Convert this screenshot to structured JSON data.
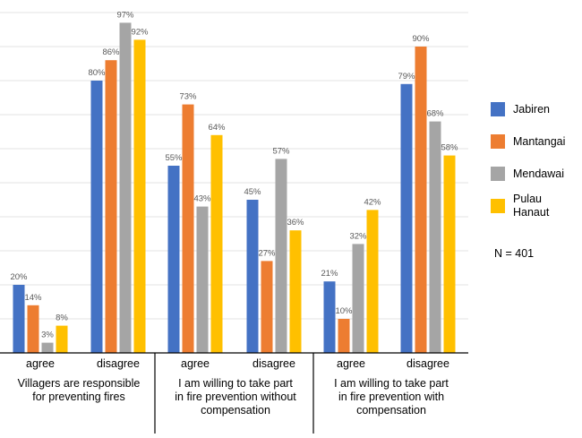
{
  "chart_data": {
    "type": "bar",
    "ylim": [
      0,
      100
    ],
    "grid": true,
    "legend_placement": "right",
    "groups": [
      {
        "label": "Villagers are responsible for preventing fires",
        "label_lines": [
          "Villagers are responsible",
          "for preventing fires"
        ]
      },
      {
        "label": "I am willing to take part in fire prevention without compensation",
        "label_lines": [
          "I am willing to take part",
          "in fire prevention without",
          "compensation"
        ]
      },
      {
        "label": "I am willing to take part in fire prevention with compensation",
        "label_lines": [
          "I am willing to take part",
          "in fire prevention with",
          "compensation"
        ]
      }
    ],
    "categories": [
      "agree",
      "disagree",
      "agree",
      "disagree",
      "agree",
      "disagree"
    ],
    "series": [
      {
        "name": "Jabiren",
        "color": "#4472C4",
        "values": [
          20,
          80,
          55,
          45,
          21,
          79
        ]
      },
      {
        "name": "Mantangai",
        "color": "#ED7D31",
        "values": [
          14,
          86,
          73,
          27,
          10,
          90
        ]
      },
      {
        "name": "Mendawai",
        "color": "#A5A5A5",
        "values": [
          3,
          97,
          43,
          57,
          32,
          68
        ]
      },
      {
        "name": "Pulau Hanaut",
        "color": "#FFC000",
        "values": [
          8,
          92,
          64,
          36,
          42,
          58
        ],
        "legend_lines": [
          "Pulau",
          "Hanaut"
        ]
      }
    ],
    "value_suffix": "%",
    "annotation": "N = 401"
  }
}
